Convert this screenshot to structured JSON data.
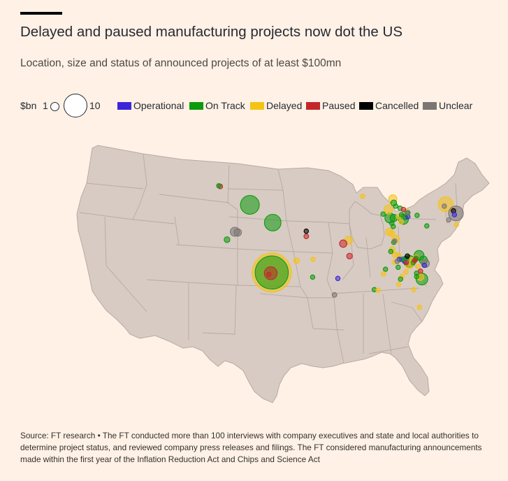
{
  "header": {
    "title": "Delayed and paused manufacturing projects now dot the US",
    "subtitle": "Location, size and status of announced projects of at least $100mn"
  },
  "legend": {
    "size_label": "$bn",
    "size_small": "1",
    "size_large": "10",
    "statuses": [
      {
        "label": "Operational",
        "color": "#3d26d9"
      },
      {
        "label": "On Track",
        "color": "#0d9a0d"
      },
      {
        "label": "Delayed",
        "color": "#f5c314"
      },
      {
        "label": "Paused",
        "color": "#c2282a"
      },
      {
        "label": "Cancelled",
        "color": "#000000"
      },
      {
        "label": "Unclear",
        "color": "#7a7674"
      }
    ]
  },
  "map": {
    "land_color": "#d8cbc3",
    "border_color": "#b8aaa1",
    "projects": [
      {
        "s": 1,
        "lon": -122.9,
        "lat": 46.5,
        "v": 0.3
      },
      {
        "s": 3,
        "lon": -122.6,
        "lat": 46.4,
        "v": 0.4
      },
      {
        "s": 1,
        "lon": -116.5,
        "lat": 43.6,
        "v": 6.5
      },
      {
        "s": 1,
        "lon": -121.2,
        "lat": 38.3,
        "v": 0.6
      },
      {
        "s": 5,
        "lon": -119.6,
        "lat": 39.5,
        "v": 1.5
      },
      {
        "s": 5,
        "lon": -119.0,
        "lat": 39.4,
        "v": 1.0
      },
      {
        "s": 1,
        "lon": -111.8,
        "lat": 40.9,
        "v": 5.0
      },
      {
        "s": 2,
        "lon": -112.0,
        "lat": 33.3,
        "v": 28.0
      },
      {
        "s": 1,
        "lon": -112.0,
        "lat": 33.3,
        "v": 20.0
      },
      {
        "s": 3,
        "lon": -112.2,
        "lat": 33.2,
        "v": 3.0
      },
      {
        "s": 3,
        "lon": -112.6,
        "lat": 33.0,
        "v": 0.2
      },
      {
        "s": 3,
        "lon": -104.9,
        "lat": 38.8,
        "v": 0.4
      },
      {
        "s": 4,
        "lon": -104.9,
        "lat": 39.6,
        "v": 0.2
      },
      {
        "s": 2,
        "lon": -106.9,
        "lat": 35.1,
        "v": 0.6
      },
      {
        "s": 2,
        "lon": -103.5,
        "lat": 35.3,
        "v": 0.2
      },
      {
        "s": 1,
        "lon": -103.6,
        "lat": 32.6,
        "v": 0.2
      },
      {
        "s": 0,
        "lon": -98.4,
        "lat": 32.4,
        "v": 0.2
      },
      {
        "s": 5,
        "lon": -99.1,
        "lat": 29.9,
        "v": 0.4
      },
      {
        "s": 3,
        "lon": -97.3,
        "lat": 37.7,
        "v": 1.0
      },
      {
        "s": 2,
        "lon": -96.2,
        "lat": 38.2,
        "v": 1.2
      },
      {
        "s": 3,
        "lon": -96.0,
        "lat": 35.8,
        "v": 0.6
      },
      {
        "s": 2,
        "lon": -93.3,
        "lat": 44.9,
        "v": 0.2
      },
      {
        "s": 2,
        "lon": -88.0,
        "lat": 42.9,
        "v": 1.4
      },
      {
        "s": 1,
        "lon": -89.1,
        "lat": 42.2,
        "v": 0.2
      },
      {
        "s": 1,
        "lon": -87.7,
        "lat": 41.6,
        "v": 1.8
      },
      {
        "s": 1,
        "lon": -86.9,
        "lat": 41.6,
        "v": 1.0
      },
      {
        "s": 1,
        "lon": -87.3,
        "lat": 40.8,
        "v": 0.3
      },
      {
        "s": 1,
        "lon": -87.0,
        "lat": 40.3,
        "v": 0.2
      },
      {
        "s": 2,
        "lon": -87.8,
        "lat": 39.5,
        "v": 1.0
      },
      {
        "s": 2,
        "lon": -87.3,
        "lat": 39.2,
        "v": 0.6
      },
      {
        "s": 2,
        "lon": -85.9,
        "lat": 41.8,
        "v": 0.3
      },
      {
        "s": 1,
        "lon": -86.9,
        "lat": 43.9,
        "v": 0.6
      },
      {
        "s": 2,
        "lon": -87.1,
        "lat": 44.5,
        "v": 1.2
      },
      {
        "s": 1,
        "lon": -86.5,
        "lat": 43.4,
        "v": 0.2
      },
      {
        "s": 1,
        "lon": -85.6,
        "lat": 43.1,
        "v": 0.3
      },
      {
        "s": 3,
        "lon": -84.9,
        "lat": 42.9,
        "v": 0.2
      },
      {
        "s": 1,
        "lon": -85.3,
        "lat": 42.1,
        "v": 0.2
      },
      {
        "s": 1,
        "lon": -84.9,
        "lat": 41.4,
        "v": 1.8
      },
      {
        "s": 1,
        "lon": -84.5,
        "lat": 41.7,
        "v": 0.4
      },
      {
        "s": 0,
        "lon": -84.0,
        "lat": 41.8,
        "v": 0.2
      },
      {
        "s": 2,
        "lon": -85.4,
        "lat": 41.0,
        "v": 0.2
      },
      {
        "s": 2,
        "lon": -84.3,
        "lat": 42.6,
        "v": 0.4
      },
      {
        "s": 1,
        "lon": -84.0,
        "lat": 42.4,
        "v": 0.2
      },
      {
        "s": 5,
        "lon": -84.2,
        "lat": 42.4,
        "v": 0.2
      },
      {
        "s": 1,
        "lon": -82.1,
        "lat": 42.0,
        "v": 0.3
      },
      {
        "s": 1,
        "lon": -80.1,
        "lat": 40.4,
        "v": 0.2
      },
      {
        "s": 2,
        "lon": -76.2,
        "lat": 43.7,
        "v": 4.0
      },
      {
        "s": 5,
        "lon": -76.5,
        "lat": 43.4,
        "v": 0.2
      },
      {
        "s": 4,
        "lon": -74.6,
        "lat": 42.7,
        "v": 0.2
      },
      {
        "s": 5,
        "lon": -74.1,
        "lat": 42.3,
        "v": 4.0
      },
      {
        "s": 0,
        "lon": -74.4,
        "lat": 42.1,
        "v": 0.2
      },
      {
        "s": 5,
        "lon": -75.6,
        "lat": 41.3,
        "v": 0.2
      },
      {
        "s": 2,
        "lon": -74.0,
        "lat": 40.6,
        "v": 0.2
      },
      {
        "s": 2,
        "lon": -86.5,
        "lat": 38.4,
        "v": 1.0
      },
      {
        "s": 1,
        "lon": -86.9,
        "lat": 37.9,
        "v": 0.2
      },
      {
        "s": 5,
        "lon": -86.7,
        "lat": 38.1,
        "v": 0.2
      },
      {
        "s": 2,
        "lon": -87.2,
        "lat": 36.8,
        "v": 0.6
      },
      {
        "s": 1,
        "lon": -87.5,
        "lat": 36.5,
        "v": 0.2
      },
      {
        "s": 2,
        "lon": -86.6,
        "lat": 36.0,
        "v": 0.6
      },
      {
        "s": 2,
        "lon": -85.9,
        "lat": 35.9,
        "v": 0.4
      },
      {
        "s": 0,
        "lon": -85.8,
        "lat": 35.3,
        "v": 0.2
      },
      {
        "s": 5,
        "lon": -86.2,
        "lat": 35.0,
        "v": 0.2
      },
      {
        "s": 1,
        "lon": -85.3,
        "lat": 35.3,
        "v": 0.3
      },
      {
        "s": 2,
        "lon": -86.8,
        "lat": 34.9,
        "v": 0.3
      },
      {
        "s": 1,
        "lon": -86.0,
        "lat": 34.1,
        "v": 0.2
      },
      {
        "s": 1,
        "lon": -84.3,
        "lat": 35.5,
        "v": 0.2
      },
      {
        "s": 4,
        "lon": -84.1,
        "lat": 35.8,
        "v": 0.2
      },
      {
        "s": 0,
        "lon": -84.5,
        "lat": 35.2,
        "v": 1.0
      },
      {
        "s": 1,
        "lon": -83.7,
        "lat": 35.0,
        "v": 2.5
      },
      {
        "s": 2,
        "lon": -83.4,
        "lat": 35.1,
        "v": 0.8
      },
      {
        "s": 2,
        "lon": -83.7,
        "lat": 34.5,
        "v": 1.2
      },
      {
        "s": 3,
        "lon": -84.3,
        "lat": 34.8,
        "v": 0.3
      },
      {
        "s": 1,
        "lon": -82.9,
        "lat": 34.8,
        "v": 0.3
      },
      {
        "s": 1,
        "lon": -81.7,
        "lat": 35.9,
        "v": 1.8
      },
      {
        "s": 3,
        "lon": -82.4,
        "lat": 35.3,
        "v": 0.3
      },
      {
        "s": 3,
        "lon": -82.6,
        "lat": 35.1,
        "v": 0.2
      },
      {
        "s": 2,
        "lon": -82.3,
        "lat": 35.6,
        "v": 0.4
      },
      {
        "s": 1,
        "lon": -82.3,
        "lat": 35.5,
        "v": 0.3
      },
      {
        "s": 1,
        "lon": -80.8,
        "lat": 35.2,
        "v": 1.2
      },
      {
        "s": 2,
        "lon": -81.9,
        "lat": 34.2,
        "v": 0.3
      },
      {
        "s": 5,
        "lon": -80.4,
        "lat": 34.7,
        "v": 1.2
      },
      {
        "s": 0,
        "lon": -80.6,
        "lat": 34.4,
        "v": 0.2
      },
      {
        "s": 1,
        "lon": -82.2,
        "lat": 33.2,
        "v": 0.2
      },
      {
        "s": 3,
        "lon": -81.4,
        "lat": 33.5,
        "v": 0.2
      },
      {
        "s": 1,
        "lon": -81.1,
        "lat": 32.3,
        "v": 2.5
      },
      {
        "s": 2,
        "lon": -81.4,
        "lat": 32.6,
        "v": 0.8
      },
      {
        "s": 1,
        "lon": -82.2,
        "lat": 32.7,
        "v": 0.2
      },
      {
        "s": 2,
        "lon": -84.4,
        "lat": 33.4,
        "v": 0.4
      },
      {
        "s": 2,
        "lon": -85.2,
        "lat": 32.7,
        "v": 0.2
      },
      {
        "s": 1,
        "lon": -85.5,
        "lat": 32.3,
        "v": 0.2
      },
      {
        "s": 2,
        "lon": -85.9,
        "lat": 31.5,
        "v": 0.3
      },
      {
        "s": 2,
        "lon": -82.8,
        "lat": 30.7,
        "v": 0.3
      },
      {
        "s": 1,
        "lon": -88.6,
        "lat": 33.8,
        "v": 0.3
      },
      {
        "s": 2,
        "lon": -89.0,
        "lat": 33.1,
        "v": 0.2
      },
      {
        "s": 1,
        "lon": -90.9,
        "lat": 30.7,
        "v": 0.3
      },
      {
        "s": 2,
        "lon": -90.1,
        "lat": 30.6,
        "v": 0.2
      },
      {
        "s": 2,
        "lon": -81.6,
        "lat": 28.0,
        "v": 0.3
      }
    ]
  },
  "footer": {
    "source": "Source: FT research • The FT conducted more than 100 interviews with company executives and state and local authorities to determine project status, and reviewed company press releases and filings. The FT considered manufacturing announcements made within the first year of the Inflation Reduction Act and Chips and Science Act"
  }
}
